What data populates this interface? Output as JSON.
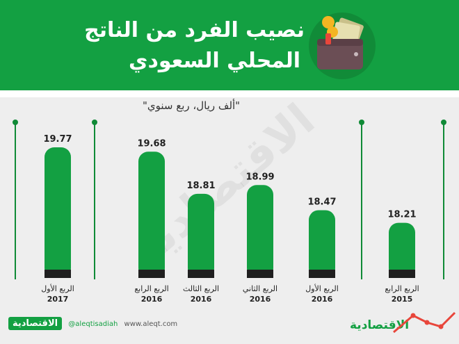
{
  "header": {
    "title_line1": "نصيب الفرد من الناتج",
    "title_line2": "المحلي السعودي"
  },
  "unit_label": "\"ألف ريال، ربع سنوي\"",
  "watermark": "الاقتصادية",
  "footer": {
    "brand": "الاقتصادية",
    "social": "@aleqtisadiah",
    "site": "www.aleqt.com",
    "brand_right": "الاقتصادية"
  },
  "colors": {
    "header": "#13a042",
    "bar": "#13a042",
    "bar_base": "#1f1f1f",
    "divider": "#0f8a36"
  },
  "chart_data": {
    "type": "bar",
    "bars": [
      {
        "quarter": "الربع الأول",
        "year": "2017",
        "value": 19.77
      },
      {
        "quarter": "الربع الرابع",
        "year": "2016",
        "value": 19.68
      },
      {
        "quarter": "الربع الثالث",
        "year": "2016",
        "value": 18.81
      },
      {
        "quarter": "الربع الثاني",
        "year": "2016",
        "value": 18.99
      },
      {
        "quarter": "الربع الأول",
        "year": "2016",
        "value": 18.47
      },
      {
        "quarter": "الربع الرابع",
        "year": "2015",
        "value": 18.21
      }
    ],
    "values": [
      19.77,
      19.68,
      18.81,
      18.99,
      18.47,
      18.21
    ],
    "ylabel": "\"ألف ريال، ربع سنوي\"",
    "grid": false
  }
}
